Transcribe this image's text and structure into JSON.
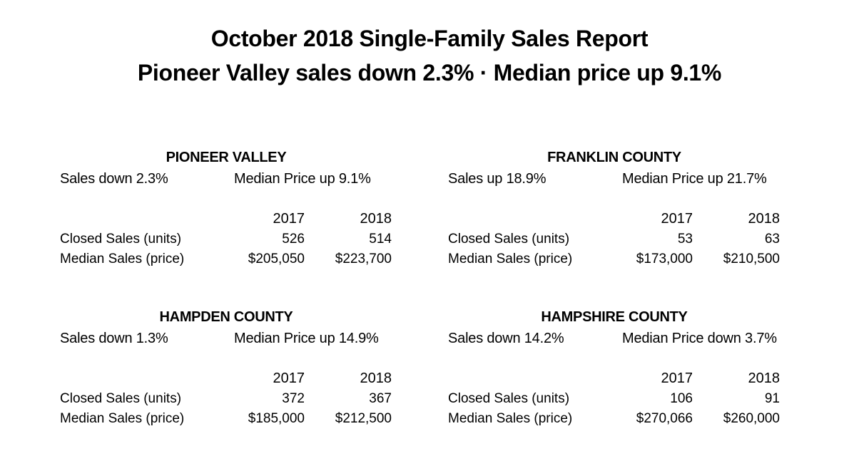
{
  "report": {
    "title": "October 2018 Single-Family Sales Report",
    "subtitle": "Pioneer Valley sales down 2.3% · Median price up 9.1%"
  },
  "table_headers": {
    "year_1": "2017",
    "year_2": "2018",
    "row_closed": "Closed Sales (units)",
    "row_median": "Median Sales (price)"
  },
  "regions": {
    "pioneer_valley": {
      "name": "PIONEER VALLEY",
      "sales_summary": "Sales down 2.3%",
      "price_summary": "Median Price up 9.1%",
      "closed_2017": "526",
      "closed_2018": "514",
      "median_2017": "$205,050",
      "median_2018": "$223,700"
    },
    "franklin_county": {
      "name": "FRANKLIN COUNTY",
      "sales_summary": "Sales up 18.9%",
      "price_summary": "Median Price up 21.7%",
      "closed_2017": "53",
      "closed_2018": "63",
      "median_2017": "$173,000",
      "median_2018": "$210,500"
    },
    "hampden_county": {
      "name": "HAMPDEN COUNTY",
      "sales_summary": "Sales down 1.3%",
      "price_summary": "Median Price up 14.9%",
      "closed_2017": "372",
      "closed_2018": "367",
      "median_2017": "$185,000",
      "median_2018": "$212,500"
    },
    "hampshire_county": {
      "name": "HAMPSHIRE COUNTY",
      "sales_summary": "Sales down 14.2%",
      "price_summary": "Median Price down 3.7%",
      "closed_2017": "106",
      "closed_2018": "91",
      "median_2017": "$270,066",
      "median_2018": "$260,000"
    }
  }
}
